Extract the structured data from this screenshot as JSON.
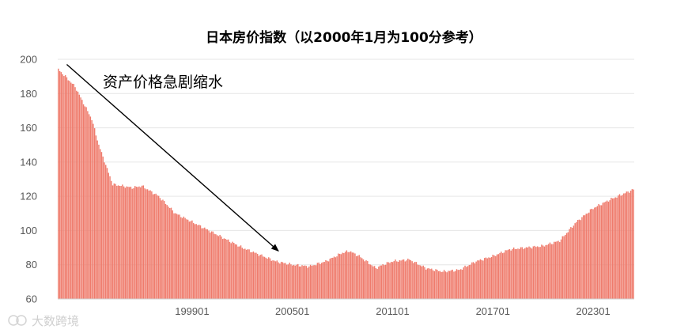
{
  "chart_data": {
    "type": "bar",
    "title": "日本房价指数（以2000年1月为100分参考）",
    "xlabel": "",
    "ylabel": "",
    "ylim": [
      60,
      200
    ],
    "yticks": [
      60,
      80,
      100,
      120,
      140,
      160,
      180,
      200
    ],
    "x_start": "1991-01",
    "x_end": "2025-06",
    "frequency": "monthly",
    "xticks": [
      "199901",
      "200501",
      "201101",
      "201701",
      "202301"
    ],
    "grid": true,
    "legend": "none",
    "bar_color": "#ef7b6c",
    "keypoints": [
      [
        "1991-01",
        194
      ],
      [
        "1991-06",
        190
      ],
      [
        "1992-01",
        184
      ],
      [
        "1992-06",
        176
      ],
      [
        "1993-01",
        165
      ],
      [
        "1993-06",
        150
      ],
      [
        "1993-12",
        136
      ],
      [
        "1994-04",
        127
      ],
      [
        "1995-06",
        125
      ],
      [
        "1996-01",
        126
      ],
      [
        "1997-01",
        120
      ],
      [
        "1998-01",
        110
      ],
      [
        "1999-01",
        105
      ],
      [
        "2000-01",
        100
      ],
      [
        "2001-01",
        95
      ],
      [
        "2002-01",
        90
      ],
      [
        "2003-01",
        86
      ],
      [
        "2004-01",
        82
      ],
      [
        "2005-01",
        80
      ],
      [
        "2006-01",
        79
      ],
      [
        "2007-01",
        82
      ],
      [
        "2008-01",
        87
      ],
      [
        "2008-06",
        88
      ],
      [
        "2009-01",
        85
      ],
      [
        "2010-01",
        78
      ],
      [
        "2010-06",
        80
      ],
      [
        "2011-01",
        82
      ],
      [
        "2012-01",
        83
      ],
      [
        "2013-01",
        78
      ],
      [
        "2014-01",
        76
      ],
      [
        "2015-01",
        77
      ],
      [
        "2016-01",
        82
      ],
      [
        "2017-01",
        85
      ],
      [
        "2018-01",
        89
      ],
      [
        "2019-01",
        90
      ],
      [
        "2020-01",
        91
      ],
      [
        "2021-01",
        94
      ],
      [
        "2022-01",
        105
      ],
      [
        "2023-01",
        113
      ],
      [
        "2024-01",
        118
      ],
      [
        "2025-06",
        124
      ]
    ],
    "annotations": [
      {
        "text": "资产价格急剧缩水",
        "type": "arrow",
        "from": [
          "1991-07",
          197
        ],
        "to": [
          "2004-03",
          88
        ]
      }
    ]
  },
  "watermark": "大数跨境"
}
